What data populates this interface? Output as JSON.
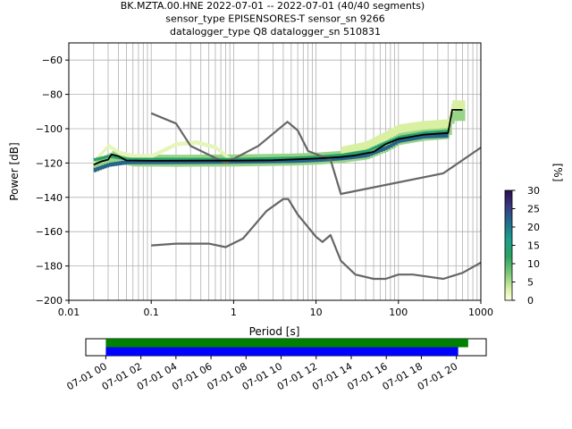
{
  "title_lines": [
    "BK.MZTA.00.HNE   2022-07-01 -- 2022-07-01  (40/40 segments)",
    "sensor_type EPISENSORES-T sensor_sn 9266",
    "datalogger_type Q8 datalogger_sn 510831"
  ],
  "chart_data": {
    "type": "heatmap",
    "xlabel": "Period [s]",
    "ylabel": "Power [dB]",
    "xscale": "log",
    "xlim": [
      0.01,
      1000
    ],
    "ylim": [
      -200,
      -50
    ],
    "x_ticks": [
      {
        "value": 0.01,
        "label": "0.01"
      },
      {
        "value": 0.1,
        "label": "0.1"
      },
      {
        "value": 1,
        "label": "1"
      },
      {
        "value": 10,
        "label": "10"
      },
      {
        "value": 100,
        "label": "100"
      },
      {
        "value": 1000,
        "label": "1000"
      }
    ],
    "y_ticks": [
      {
        "value": -60,
        "label": "−60"
      },
      {
        "value": -80,
        "label": "−80"
      },
      {
        "value": -100,
        "label": "−100"
      },
      {
        "value": -120,
        "label": "−120"
      },
      {
        "value": -140,
        "label": "−140"
      },
      {
        "value": -160,
        "label": "−160"
      },
      {
        "value": -180,
        "label": "−180"
      },
      {
        "value": -200,
        "label": "−200"
      }
    ],
    "grid": true,
    "colorbar": {
      "label": "[%]",
      "range": [
        0,
        30
      ],
      "ticks": [
        {
          "value": 0,
          "label": "0"
        },
        {
          "value": 5,
          "label": "5"
        },
        {
          "value": 10,
          "label": "10"
        },
        {
          "value": 15,
          "label": "15"
        },
        {
          "value": 20,
          "label": "20"
        },
        {
          "value": 25,
          "label": "25"
        },
        {
          "value": 30,
          "label": "30"
        }
      ]
    },
    "series": [
      {
        "role": "noise-model-upper",
        "color": "#666666",
        "points": [
          [
            0.1,
            -91
          ],
          [
            0.2,
            -97
          ],
          [
            0.3,
            -110
          ],
          [
            0.8,
            -120
          ],
          [
            2,
            -110
          ],
          [
            4,
            -98
          ],
          [
            4.5,
            -96
          ],
          [
            6,
            -101
          ],
          [
            8,
            -113
          ],
          [
            15,
            -118
          ],
          [
            20,
            -138
          ],
          [
            350,
            -126
          ],
          [
            1000,
            -111
          ]
        ]
      },
      {
        "role": "noise-model-lower",
        "color": "#666666",
        "points": [
          [
            0.1,
            -168
          ],
          [
            0.2,
            -167
          ],
          [
            0.5,
            -167
          ],
          [
            0.8,
            -169
          ],
          [
            1.3,
            -164
          ],
          [
            2.5,
            -148
          ],
          [
            4,
            -141
          ],
          [
            4.6,
            -141
          ],
          [
            6,
            -150
          ],
          [
            10,
            -163
          ],
          [
            12,
            -166
          ],
          [
            15,
            -162
          ],
          [
            20,
            -177
          ],
          [
            30,
            -185
          ],
          [
            50,
            -187.5
          ],
          [
            70,
            -187.5
          ],
          [
            100,
            -185
          ],
          [
            150,
            -185
          ],
          [
            350,
            -187.5
          ],
          [
            600,
            -184
          ],
          [
            1000,
            -178
          ]
        ]
      },
      {
        "role": "mode",
        "color": "#000000",
        "points": [
          [
            0.02,
            -121
          ],
          [
            0.025,
            -119
          ],
          [
            0.03,
            -118
          ],
          [
            0.033,
            -115
          ],
          [
            0.04,
            -116
          ],
          [
            0.05,
            -118.5
          ],
          [
            0.1,
            -118.7
          ],
          [
            0.5,
            -118.6
          ],
          [
            1,
            -118.6
          ],
          [
            3,
            -118.4
          ],
          [
            6,
            -117.8
          ],
          [
            10,
            -117.4
          ],
          [
            20,
            -116.5
          ],
          [
            30,
            -115.5
          ],
          [
            50,
            -113.5
          ],
          [
            70,
            -109
          ],
          [
            100,
            -106
          ],
          [
            200,
            -103.5
          ],
          [
            400,
            -102.5
          ],
          [
            450,
            -89
          ],
          [
            600,
            -89
          ]
        ]
      }
    ],
    "pdf_bands": [
      {
        "points": [
          [
            0.02,
            -122
          ],
          [
            0.025,
            -120
          ],
          [
            0.03,
            -118
          ],
          [
            0.035,
            -116
          ],
          [
            0.04,
            -117
          ],
          [
            0.06,
            -118.5
          ],
          [
            0.2,
            -118.7
          ],
          [
            1,
            -118.5
          ],
          [
            5,
            -118
          ],
          [
            10,
            -117.4
          ],
          [
            20,
            -116.4
          ],
          [
            40,
            -114.5
          ],
          [
            70,
            -110
          ],
          [
            100,
            -106
          ],
          [
            200,
            -103.5
          ],
          [
            400,
            -102.5
          ],
          [
            450,
            -92
          ],
          [
            640,
            -92
          ]
        ],
        "halfwidth": 3.5,
        "pct": 6
      },
      {
        "points": [
          [
            0.02,
            -119
          ],
          [
            0.03,
            -110
          ],
          [
            0.04,
            -114
          ],
          [
            0.06,
            -116
          ],
          [
            0.1,
            -116
          ],
          [
            0.2,
            -109
          ],
          [
            0.35,
            -108
          ],
          [
            0.6,
            -111
          ],
          [
            0.9,
            -118
          ]
        ],
        "halfwidth": 1.2,
        "pct": 2
      },
      {
        "points": [
          [
            20,
            -113
          ],
          [
            40,
            -110
          ],
          [
            70,
            -104
          ],
          [
            100,
            -100
          ],
          [
            200,
            -98
          ],
          [
            400,
            -97
          ],
          [
            450,
            -86
          ],
          [
            640,
            -86
          ]
        ],
        "halfwidth": 2.5,
        "pct": 3
      },
      {
        "points": [
          [
            0.02,
            -124
          ],
          [
            0.03,
            -121
          ],
          [
            0.05,
            -119.5
          ],
          [
            0.3,
            -119.4
          ],
          [
            1,
            -119.2
          ],
          [
            5,
            -118.8
          ],
          [
            10,
            -118.2
          ],
          [
            20,
            -117.2
          ],
          [
            40,
            -115.5
          ],
          [
            70,
            -111
          ],
          [
            100,
            -107
          ],
          [
            200,
            -104.5
          ],
          [
            400,
            -104
          ]
        ],
        "halfwidth": 1.2,
        "pct": 22
      },
      {
        "points": [
          [
            0.02,
            -118
          ],
          [
            0.03,
            -116
          ],
          [
            0.05,
            -117.8
          ],
          [
            1,
            -117.9
          ],
          [
            5,
            -117.2
          ],
          [
            10,
            -116.5
          ],
          [
            20,
            -115.4
          ],
          [
            40,
            -113
          ],
          [
            70,
            -108
          ],
          [
            100,
            -105
          ],
          [
            200,
            -102.5
          ],
          [
            400,
            -101.5
          ]
        ],
        "halfwidth": 0.9,
        "pct": 13
      }
    ]
  },
  "timeline": {
    "colors": {
      "data": "#008000",
      "gaps": "#0000ff"
    },
    "start_fraction": 0.05,
    "end_fraction_data": 0.955,
    "end_fraction_gaps": 0.93,
    "tick_labels": [
      "07-01 00",
      "07-01 02",
      "07-01 04",
      "07-01 06",
      "07-01 08",
      "07-01 10",
      "07-01 12",
      "07-01 14",
      "07-01 16",
      "07-01 18",
      "07-01 20"
    ]
  }
}
